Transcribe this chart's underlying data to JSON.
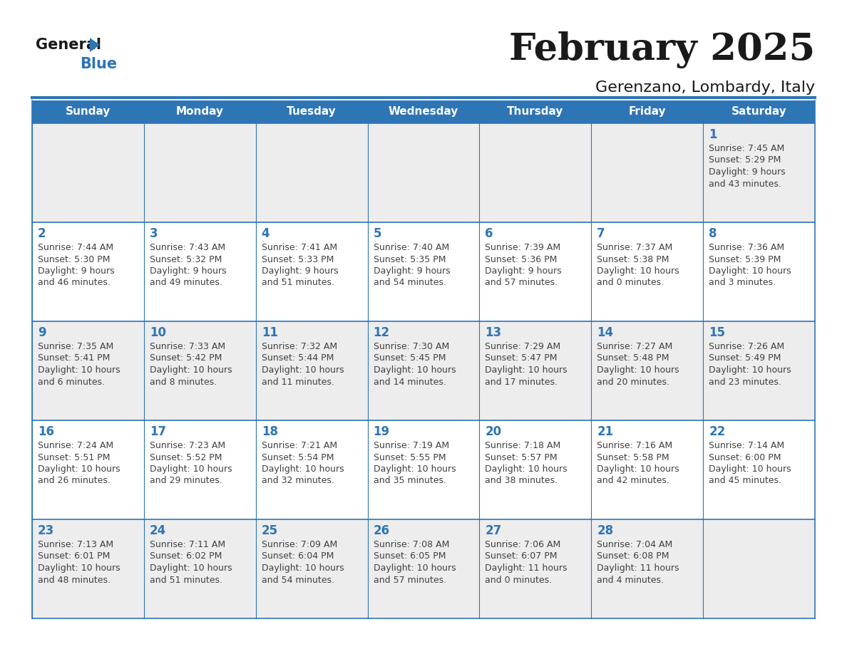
{
  "title": "February 2025",
  "subtitle": "Gerenzano, Lombardy, Italy",
  "header_bg": "#2E75B6",
  "header_text_color": "#FFFFFF",
  "day_names": [
    "Sunday",
    "Monday",
    "Tuesday",
    "Wednesday",
    "Thursday",
    "Friday",
    "Saturday"
  ],
  "bg_color": "#FFFFFF",
  "cell_bg_even": "#EDEDED",
  "cell_bg_odd": "#FFFFFF",
  "border_color": "#2E75B6",
  "day_num_color": "#2E75B6",
  "info_color": "#404040",
  "logo_general_color": "#1A1A1A",
  "logo_blue_color": "#2E75B6",
  "calendar_data": [
    [
      null,
      null,
      null,
      null,
      null,
      null,
      {
        "day": "1",
        "sunrise": "7:45 AM",
        "sunset": "5:29 PM",
        "daylight1": "9 hours",
        "daylight2": "and 43 minutes."
      }
    ],
    [
      {
        "day": "2",
        "sunrise": "7:44 AM",
        "sunset": "5:30 PM",
        "daylight1": "9 hours",
        "daylight2": "and 46 minutes."
      },
      {
        "day": "3",
        "sunrise": "7:43 AM",
        "sunset": "5:32 PM",
        "daylight1": "9 hours",
        "daylight2": "and 49 minutes."
      },
      {
        "day": "4",
        "sunrise": "7:41 AM",
        "sunset": "5:33 PM",
        "daylight1": "9 hours",
        "daylight2": "and 51 minutes."
      },
      {
        "day": "5",
        "sunrise": "7:40 AM",
        "sunset": "5:35 PM",
        "daylight1": "9 hours",
        "daylight2": "and 54 minutes."
      },
      {
        "day": "6",
        "sunrise": "7:39 AM",
        "sunset": "5:36 PM",
        "daylight1": "9 hours",
        "daylight2": "and 57 minutes."
      },
      {
        "day": "7",
        "sunrise": "7:37 AM",
        "sunset": "5:38 PM",
        "daylight1": "10 hours",
        "daylight2": "and 0 minutes."
      },
      {
        "day": "8",
        "sunrise": "7:36 AM",
        "sunset": "5:39 PM",
        "daylight1": "10 hours",
        "daylight2": "and 3 minutes."
      }
    ],
    [
      {
        "day": "9",
        "sunrise": "7:35 AM",
        "sunset": "5:41 PM",
        "daylight1": "10 hours",
        "daylight2": "and 6 minutes."
      },
      {
        "day": "10",
        "sunrise": "7:33 AM",
        "sunset": "5:42 PM",
        "daylight1": "10 hours",
        "daylight2": "and 8 minutes."
      },
      {
        "day": "11",
        "sunrise": "7:32 AM",
        "sunset": "5:44 PM",
        "daylight1": "10 hours",
        "daylight2": "and 11 minutes."
      },
      {
        "day": "12",
        "sunrise": "7:30 AM",
        "sunset": "5:45 PM",
        "daylight1": "10 hours",
        "daylight2": "and 14 minutes."
      },
      {
        "day": "13",
        "sunrise": "7:29 AM",
        "sunset": "5:47 PM",
        "daylight1": "10 hours",
        "daylight2": "and 17 minutes."
      },
      {
        "day": "14",
        "sunrise": "7:27 AM",
        "sunset": "5:48 PM",
        "daylight1": "10 hours",
        "daylight2": "and 20 minutes."
      },
      {
        "day": "15",
        "sunrise": "7:26 AM",
        "sunset": "5:49 PM",
        "daylight1": "10 hours",
        "daylight2": "and 23 minutes."
      }
    ],
    [
      {
        "day": "16",
        "sunrise": "7:24 AM",
        "sunset": "5:51 PM",
        "daylight1": "10 hours",
        "daylight2": "and 26 minutes."
      },
      {
        "day": "17",
        "sunrise": "7:23 AM",
        "sunset": "5:52 PM",
        "daylight1": "10 hours",
        "daylight2": "and 29 minutes."
      },
      {
        "day": "18",
        "sunrise": "7:21 AM",
        "sunset": "5:54 PM",
        "daylight1": "10 hours",
        "daylight2": "and 32 minutes."
      },
      {
        "day": "19",
        "sunrise": "7:19 AM",
        "sunset": "5:55 PM",
        "daylight1": "10 hours",
        "daylight2": "and 35 minutes."
      },
      {
        "day": "20",
        "sunrise": "7:18 AM",
        "sunset": "5:57 PM",
        "daylight1": "10 hours",
        "daylight2": "and 38 minutes."
      },
      {
        "day": "21",
        "sunrise": "7:16 AM",
        "sunset": "5:58 PM",
        "daylight1": "10 hours",
        "daylight2": "and 42 minutes."
      },
      {
        "day": "22",
        "sunrise": "7:14 AM",
        "sunset": "6:00 PM",
        "daylight1": "10 hours",
        "daylight2": "and 45 minutes."
      }
    ],
    [
      {
        "day": "23",
        "sunrise": "7:13 AM",
        "sunset": "6:01 PM",
        "daylight1": "10 hours",
        "daylight2": "and 48 minutes."
      },
      {
        "day": "24",
        "sunrise": "7:11 AM",
        "sunset": "6:02 PM",
        "daylight1": "10 hours",
        "daylight2": "and 51 minutes."
      },
      {
        "day": "25",
        "sunrise": "7:09 AM",
        "sunset": "6:04 PM",
        "daylight1": "10 hours",
        "daylight2": "and 54 minutes."
      },
      {
        "day": "26",
        "sunrise": "7:08 AM",
        "sunset": "6:05 PM",
        "daylight1": "10 hours",
        "daylight2": "and 57 minutes."
      },
      {
        "day": "27",
        "sunrise": "7:06 AM",
        "sunset": "6:07 PM",
        "daylight1": "11 hours",
        "daylight2": "and 0 minutes."
      },
      {
        "day": "28",
        "sunrise": "7:04 AM",
        "sunset": "6:08 PM",
        "daylight1": "11 hours",
        "daylight2": "and 4 minutes."
      },
      null
    ]
  ]
}
